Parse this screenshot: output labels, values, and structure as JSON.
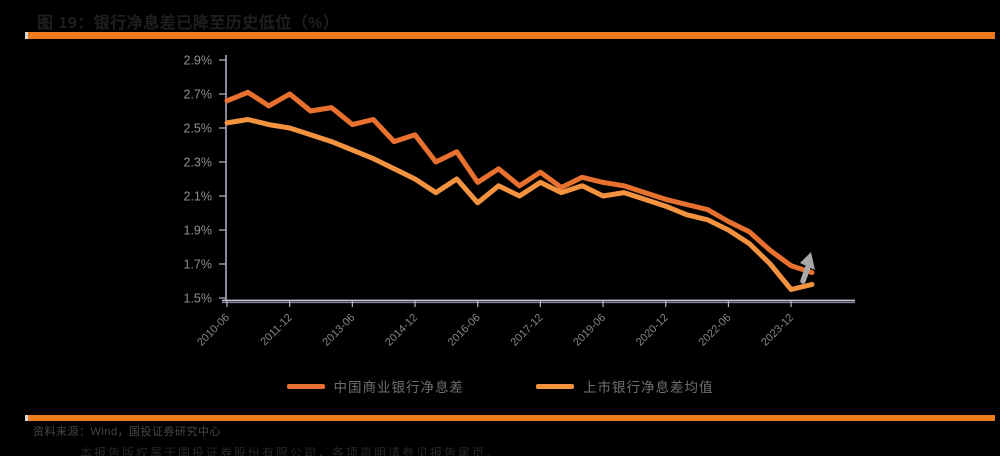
{
  "title": "图 19：银行净息差已降至历史低位（%）",
  "accent_color": "#EE7C1F",
  "chart_data": {
    "type": "line",
    "title": "银行净息差已降至历史低位（%）",
    "xlabel": "",
    "ylabel": "",
    "ylim": [
      1.5,
      2.9
    ],
    "grid": false,
    "legend_position": "bottom",
    "categories": [
      "2010-06",
      "2010-12",
      "2011-06",
      "2011-12",
      "2012-06",
      "2012-12",
      "2013-06",
      "2013-12",
      "2014-06",
      "2014-12",
      "2015-06",
      "2015-12",
      "2016-06",
      "2016-12",
      "2017-06",
      "2017-12",
      "2018-06",
      "2018-12",
      "2019-06",
      "2019-12",
      "2020-06",
      "2020-12",
      "2021-06",
      "2021-12",
      "2022-06",
      "2022-12",
      "2023-06",
      "2023-12",
      "2024-06"
    ],
    "xtick_indices": [
      0,
      3,
      6,
      9,
      12,
      15,
      18,
      21,
      24,
      27
    ],
    "xtick_labels": [
      "2010-06",
      "2011-12",
      "2013-06",
      "2014-12",
      "2016-06",
      "2017-12",
      "2019-06",
      "2020-12",
      "2022-06",
      "2023-12"
    ],
    "ytick_labels": [
      "2.9%",
      "2.7%",
      "2.5%",
      "2.3%",
      "2.1%",
      "1.9%",
      "1.7%",
      "1.5%"
    ],
    "ytick_values": [
      2.9,
      2.7,
      2.5,
      2.3,
      2.1,
      1.9,
      1.7,
      1.5
    ],
    "series": [
      {
        "name": "中国商业银行净息差",
        "color": "#E87130",
        "values": [
          2.66,
          2.71,
          2.63,
          2.7,
          2.6,
          2.62,
          2.52,
          2.55,
          2.42,
          2.46,
          2.3,
          2.36,
          2.18,
          2.26,
          2.16,
          2.24,
          2.15,
          2.21,
          2.18,
          2.16,
          2.12,
          2.08,
          2.05,
          2.02,
          1.95,
          1.89,
          1.78,
          1.69,
          1.65
        ]
      },
      {
        "name": "上市银行净息差均值",
        "color": "#F3923F",
        "values": [
          2.53,
          2.55,
          2.52,
          2.5,
          2.46,
          2.42,
          2.37,
          2.32,
          2.26,
          2.2,
          2.12,
          2.2,
          2.06,
          2.16,
          2.1,
          2.18,
          2.12,
          2.16,
          2.1,
          2.12,
          2.08,
          2.04,
          1.99,
          1.96,
          1.9,
          1.82,
          1.7,
          1.55,
          1.58
        ]
      }
    ],
    "annotation": {
      "type": "arrow",
      "name": "trend-up-arrow",
      "color": "#A8A8A8",
      "direction": "up-right"
    }
  },
  "axis_colors": {
    "axis_line": "#B9B4C6",
    "baseline": "#C9C3D6",
    "baseline_accent": "#A79BC8",
    "tick_label": "#8E8E8E",
    "xtick_label": "#848484"
  },
  "footer": {
    "source": "资料来源：Wind，国投证券研究中心"
  },
  "disclaimer": "本报告版权属于国投证券股份有限公司，各项声明请参见报告尾页。"
}
